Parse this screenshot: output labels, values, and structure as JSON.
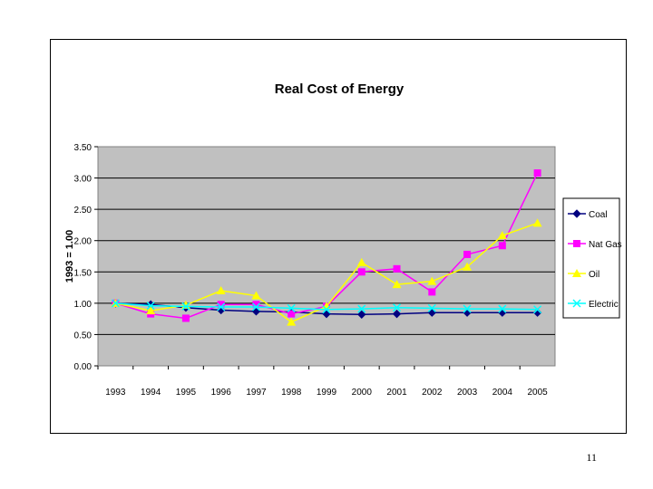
{
  "page": {
    "page_number": "11"
  },
  "chart_data": {
    "type": "line",
    "title": "Real Cost of Energy",
    "ylabel": "1993 = 1.00",
    "xlabel": "",
    "categories": [
      "1993",
      "1994",
      "1995",
      "1996",
      "1997",
      "1998",
      "1999",
      "2000",
      "2001",
      "2002",
      "2003",
      "2004",
      "2005"
    ],
    "yticks": [
      "0.00",
      "0.50",
      "1.00",
      "1.50",
      "2.00",
      "2.50",
      "3.00",
      "3.50"
    ],
    "ylim": [
      0,
      3.5
    ],
    "grid": true,
    "legend_position": "right",
    "plot_background": "#c0c0c0",
    "series": [
      {
        "name": "Coal",
        "color": "#000080",
        "marker": "diamond",
        "values": [
          1.0,
          0.98,
          0.93,
          0.89,
          0.87,
          0.86,
          0.83,
          0.82,
          0.83,
          0.85,
          0.85,
          0.85,
          0.85
        ]
      },
      {
        "name": "Nat Gas",
        "color": "#ff00ff",
        "marker": "square",
        "values": [
          1.0,
          0.83,
          0.76,
          0.98,
          0.98,
          0.83,
          0.95,
          1.5,
          1.55,
          1.18,
          1.78,
          1.92,
          3.08
        ]
      },
      {
        "name": "Oil",
        "color": "#ffff00",
        "marker": "triangle",
        "values": [
          1.0,
          0.88,
          0.97,
          1.2,
          1.12,
          0.7,
          0.95,
          1.65,
          1.3,
          1.35,
          1.58,
          2.08,
          2.28
        ]
      },
      {
        "name": "Electric",
        "color": "#00ffff",
        "marker": "x",
        "values": [
          1.0,
          0.96,
          0.95,
          0.94,
          0.94,
          0.92,
          0.9,
          0.91,
          0.93,
          0.92,
          0.91,
          0.91,
          0.9
        ]
      }
    ]
  }
}
